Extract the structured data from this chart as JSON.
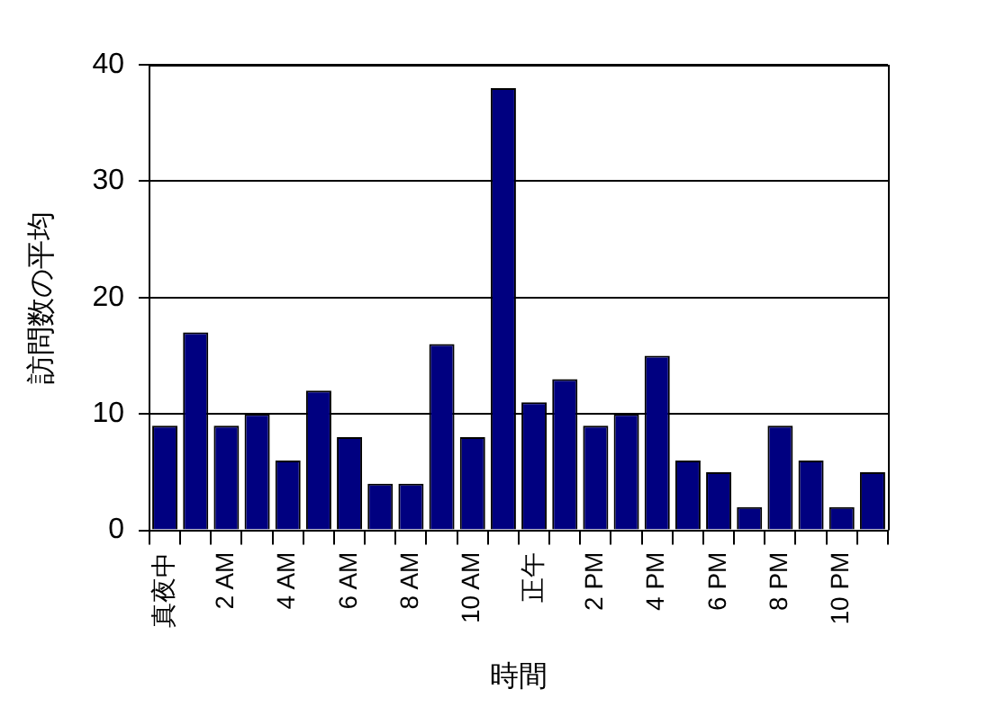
{
  "chart_data": {
    "type": "bar",
    "xlabel": "時間",
    "ylabel": "訪問数の平均",
    "categories": [
      "真夜中",
      null,
      "2 AM",
      null,
      "4 AM",
      null,
      "6 AM",
      null,
      "8 AM",
      null,
      "10 AM",
      null,
      "正午",
      null,
      "2 PM",
      null,
      "4 PM",
      null,
      "6 PM",
      null,
      "8 PM",
      null,
      "10 PM",
      null
    ],
    "values": [
      9,
      17,
      9,
      10,
      6,
      12,
      8,
      4,
      4,
      16,
      8,
      38,
      11,
      13,
      9,
      10,
      15,
      6,
      5,
      2,
      9,
      6,
      2,
      5
    ],
    "color": "#000080",
    "ylim": [
      0,
      40
    ],
    "yticks": [
      0,
      10,
      20,
      30,
      40
    ],
    "grid": "y"
  }
}
